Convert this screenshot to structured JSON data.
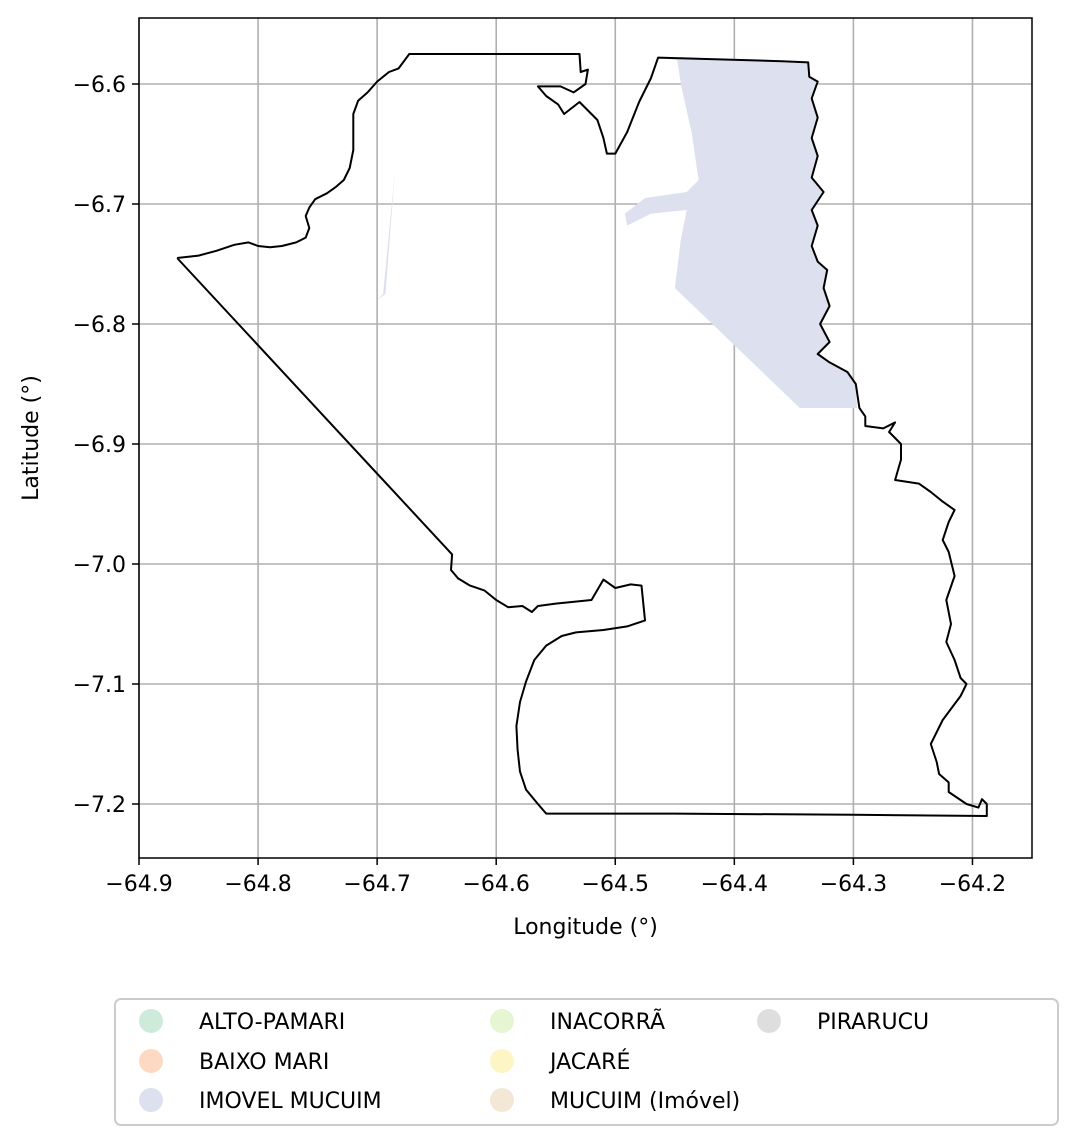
{
  "chart_data": {
    "type": "map",
    "xlabel": "Longitude (°)",
    "ylabel": "Latitude (°)",
    "xlim": [
      -64.9,
      -64.15
    ],
    "ylim": [
      -7.245,
      -6.545
    ],
    "x_ticks": [
      -64.9,
      -64.8,
      -64.7,
      -64.6,
      -64.5,
      -64.4,
      -64.3,
      -64.2
    ],
    "y_ticks": [
      -6.6,
      -6.7,
      -6.8,
      -6.9,
      -7.0,
      -7.1,
      -7.2
    ],
    "x_tick_labels": [
      "−64.9",
      "−64.8",
      "−64.7",
      "−64.6",
      "−64.5",
      "−64.4",
      "−64.3",
      "−64.2"
    ],
    "y_tick_labels": [
      "−6.6",
      "−6.7",
      "−6.8",
      "−6.9",
      "−7.0",
      "−7.1",
      "−7.2"
    ],
    "grid": true,
    "legend_placement": "bottom",
    "legend": [
      {
        "label": "ALTO-PAMARI",
        "color": "#cdeadb"
      },
      {
        "label": "BAIXO MARI",
        "color": "#fdd9c3"
      },
      {
        "label": "IMOVEL MUCUIM",
        "color": "#dde1ef"
      },
      {
        "label": "INACORRÃ",
        "color": "#e6f5d2"
      },
      {
        "label": "JACARÉ",
        "color": "#fef5c4"
      },
      {
        "label": "MUCUIM (Imóvel)",
        "color": "#f3e7d6"
      },
      {
        "label": "PIRARUCU",
        "color": "#dedede"
      }
    ],
    "boundary": [
      [
        -64.868,
        -6.745
      ],
      [
        -64.85,
        -6.743
      ],
      [
        -64.835,
        -6.739
      ],
      [
        -64.82,
        -6.734
      ],
      [
        -64.808,
        -6.732
      ],
      [
        -64.8,
        -6.735
      ],
      [
        -64.79,
        -6.736
      ],
      [
        -64.78,
        -6.735
      ],
      [
        -64.768,
        -6.732
      ],
      [
        -64.76,
        -6.728
      ],
      [
        -64.757,
        -6.72
      ],
      [
        -64.76,
        -6.71
      ],
      [
        -64.757,
        -6.703
      ],
      [
        -64.752,
        -6.696
      ],
      [
        -64.742,
        -6.691
      ],
      [
        -64.735,
        -6.686
      ],
      [
        -64.728,
        -6.68
      ],
      [
        -64.723,
        -6.67
      ],
      [
        -64.72,
        -6.655
      ],
      [
        -64.72,
        -6.64
      ],
      [
        -64.72,
        -6.625
      ],
      [
        -64.716,
        -6.614
      ],
      [
        -64.708,
        -6.607
      ],
      [
        -64.7,
        -6.598
      ],
      [
        -64.69,
        -6.59
      ],
      [
        -64.682,
        -6.587
      ],
      [
        -64.673,
        -6.575
      ],
      [
        -64.53,
        -6.575
      ],
      [
        -64.529,
        -6.59
      ],
      [
        -64.523,
        -6.588
      ],
      [
        -64.525,
        -6.6
      ],
      [
        -64.535,
        -6.607
      ],
      [
        -64.546,
        -6.602
      ],
      [
        -64.565,
        -6.602
      ],
      [
        -64.558,
        -6.61
      ],
      [
        -64.548,
        -6.617
      ],
      [
        -64.543,
        -6.625
      ],
      [
        -64.53,
        -6.615
      ],
      [
        -64.515,
        -6.63
      ],
      [
        -64.51,
        -6.645
      ],
      [
        -64.507,
        -6.658
      ],
      [
        -64.5,
        -6.658
      ],
      [
        -64.49,
        -6.64
      ],
      [
        -64.48,
        -6.615
      ],
      [
        -64.47,
        -6.595
      ],
      [
        -64.464,
        -6.578
      ],
      [
        -64.36,
        -6.581
      ],
      [
        -64.338,
        -6.582
      ],
      [
        -64.337,
        -6.594
      ],
      [
        -64.33,
        -6.598
      ],
      [
        -64.335,
        -6.612
      ],
      [
        -64.33,
        -6.628
      ],
      [
        -64.335,
        -6.645
      ],
      [
        -64.33,
        -6.66
      ],
      [
        -64.335,
        -6.678
      ],
      [
        -64.325,
        -6.69
      ],
      [
        -64.335,
        -6.705
      ],
      [
        -64.33,
        -6.718
      ],
      [
        -64.335,
        -6.735
      ],
      [
        -64.33,
        -6.748
      ],
      [
        -64.322,
        -6.755
      ],
      [
        -64.325,
        -6.77
      ],
      [
        -64.32,
        -6.785
      ],
      [
        -64.328,
        -6.8
      ],
      [
        -64.32,
        -6.815
      ],
      [
        -64.33,
        -6.825
      ],
      [
        -64.32,
        -6.832
      ],
      [
        -64.305,
        -6.84
      ],
      [
        -64.298,
        -6.85
      ],
      [
        -64.295,
        -6.87
      ],
      [
        -64.29,
        -6.877
      ],
      [
        -64.29,
        -6.885
      ],
      [
        -64.275,
        -6.887
      ],
      [
        -64.265,
        -6.882
      ],
      [
        -64.27,
        -6.89
      ],
      [
        -64.26,
        -6.9
      ],
      [
        -64.26,
        -6.913
      ],
      [
        -64.265,
        -6.93
      ],
      [
        -64.245,
        -6.933
      ],
      [
        -64.235,
        -6.94
      ],
      [
        -64.225,
        -6.948
      ],
      [
        -64.215,
        -6.955
      ],
      [
        -64.22,
        -6.965
      ],
      [
        -64.225,
        -6.98
      ],
      [
        -64.22,
        -6.99
      ],
      [
        -64.215,
        -7.01
      ],
      [
        -64.222,
        -7.03
      ],
      [
        -64.218,
        -7.05
      ],
      [
        -64.222,
        -7.065
      ],
      [
        -64.215,
        -7.08
      ],
      [
        -64.21,
        -7.095
      ],
      [
        -64.205,
        -7.1
      ],
      [
        -64.21,
        -7.11
      ],
      [
        -64.225,
        -7.13
      ],
      [
        -64.235,
        -7.15
      ],
      [
        -64.23,
        -7.165
      ],
      [
        -64.228,
        -7.175
      ],
      [
        -64.22,
        -7.182
      ],
      [
        -64.22,
        -7.19
      ],
      [
        -64.205,
        -7.2
      ],
      [
        -64.195,
        -7.203
      ],
      [
        -64.192,
        -7.196
      ],
      [
        -64.188,
        -7.2
      ],
      [
        -64.188,
        -7.21
      ],
      [
        -64.3,
        -7.209
      ],
      [
        -64.45,
        -7.208
      ],
      [
        -64.558,
        -7.208
      ],
      [
        -64.565,
        -7.2
      ],
      [
        -64.575,
        -7.188
      ],
      [
        -64.58,
        -7.173
      ],
      [
        -64.582,
        -7.155
      ],
      [
        -64.583,
        -7.135
      ],
      [
        -64.58,
        -7.115
      ],
      [
        -64.575,
        -7.098
      ],
      [
        -64.568,
        -7.08
      ],
      [
        -64.558,
        -7.068
      ],
      [
        -64.545,
        -7.06
      ],
      [
        -64.533,
        -7.057
      ],
      [
        -64.51,
        -7.055
      ],
      [
        -64.49,
        -7.052
      ],
      [
        -64.475,
        -7.047
      ],
      [
        -64.478,
        -7.018
      ],
      [
        -64.487,
        -7.017
      ],
      [
        -64.5,
        -7.02
      ],
      [
        -64.51,
        -7.013
      ],
      [
        -64.52,
        -7.03
      ],
      [
        -64.55,
        -7.033
      ],
      [
        -64.565,
        -7.035
      ],
      [
        -64.57,
        -7.04
      ],
      [
        -64.578,
        -7.035
      ],
      [
        -64.59,
        -7.036
      ],
      [
        -64.6,
        -7.03
      ],
      [
        -64.61,
        -7.022
      ],
      [
        -64.622,
        -7.018
      ],
      [
        -64.632,
        -7.012
      ],
      [
        -64.638,
        -7.005
      ],
      [
        -64.637,
        -6.992
      ],
      [
        -64.868,
        -6.745
      ]
    ],
    "filled_areas": [
      {
        "label": "IMOVEL MUCUIM",
        "color": "#dde1ef",
        "polygons": [
          [
            [
              -64.464,
              -6.578
            ],
            [
              -64.36,
              -6.581
            ],
            [
              -64.338,
              -6.582
            ],
            [
              -64.337,
              -6.594
            ],
            [
              -64.33,
              -6.598
            ],
            [
              -64.335,
              -6.612
            ],
            [
              -64.33,
              -6.628
            ],
            [
              -64.335,
              -6.645
            ],
            [
              -64.33,
              -6.66
            ],
            [
              -64.335,
              -6.678
            ],
            [
              -64.325,
              -6.69
            ],
            [
              -64.335,
              -6.705
            ],
            [
              -64.33,
              -6.718
            ],
            [
              -64.335,
              -6.735
            ],
            [
              -64.33,
              -6.748
            ],
            [
              -64.322,
              -6.755
            ],
            [
              -64.325,
              -6.77
            ],
            [
              -64.32,
              -6.785
            ],
            [
              -64.328,
              -6.8
            ],
            [
              -64.32,
              -6.815
            ],
            [
              -64.33,
              -6.825
            ],
            [
              -64.32,
              -6.832
            ],
            [
              -64.305,
              -6.84
            ],
            [
              -64.298,
              -6.85
            ],
            [
              -64.297,
              -6.87
            ],
            [
              -64.345,
              -6.87
            ],
            [
              -64.45,
              -6.77
            ],
            [
              -64.445,
              -6.73
            ],
            [
              -64.44,
              -6.705
            ],
            [
              -64.47,
              -6.708
            ],
            [
              -64.49,
              -6.718
            ],
            [
              -64.492,
              -6.708
            ],
            [
              -64.475,
              -6.695
            ],
            [
              -64.44,
              -6.69
            ],
            [
              -64.43,
              -6.68
            ],
            [
              -64.436,
              -6.64
            ],
            [
              -64.445,
              -6.6
            ],
            [
              -64.448,
              -6.58
            ]
          ],
          [
            [
              -64.7,
              -6.78
            ],
            [
              -64.695,
              -6.775
            ],
            [
              -64.685,
              -6.672
            ],
            [
              -64.693,
              -6.775
            ],
            [
              -64.7,
              -6.78
            ]
          ]
        ]
      }
    ]
  }
}
